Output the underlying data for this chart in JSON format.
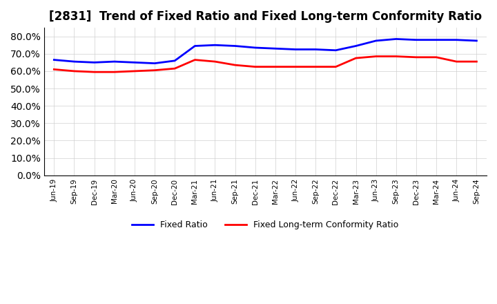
{
  "title": "[2831]  Trend of Fixed Ratio and Fixed Long-term Conformity Ratio",
  "title_fontsize": 12,
  "fixed_ratio": {
    "label": "Fixed Ratio",
    "color": "#0000FF",
    "values": [
      66.5,
      65.5,
      65.0,
      65.5,
      65.0,
      64.5,
      66.0,
      74.5,
      75.0,
      74.5,
      73.5,
      73.0,
      72.5,
      72.5,
      72.0,
      74.5,
      77.5,
      78.5,
      78.0,
      78.0,
      78.0,
      77.5
    ]
  },
  "fixed_lt_ratio": {
    "label": "Fixed Long-term Conformity Ratio",
    "color": "#FF0000",
    "values": [
      61.0,
      60.0,
      59.5,
      59.5,
      60.0,
      60.5,
      61.5,
      66.5,
      65.5,
      63.5,
      62.5,
      62.5,
      62.5,
      62.5,
      62.5,
      67.5,
      68.5,
      68.5,
      68.0,
      68.0,
      65.5,
      65.5
    ]
  },
  "x_labels": [
    "Jun-19",
    "Sep-19",
    "Dec-19",
    "Mar-20",
    "Jun-20",
    "Sep-20",
    "Dec-20",
    "Mar-21",
    "Jun-21",
    "Sep-21",
    "Dec-21",
    "Mar-22",
    "Jun-22",
    "Sep-22",
    "Dec-22",
    "Mar-23",
    "Jun-23",
    "Sep-23",
    "Dec-23",
    "Mar-24",
    "Jun-24",
    "Sep-24"
  ],
  "ylim": [
    0,
    85
  ],
  "yticks": [
    0,
    10,
    20,
    30,
    40,
    50,
    60,
    70,
    80
  ],
  "background_color": "#FFFFFF",
  "plot_bg_color": "#FFFFFF",
  "grid_color": "#CCCCCC",
  "linewidth": 2.0
}
